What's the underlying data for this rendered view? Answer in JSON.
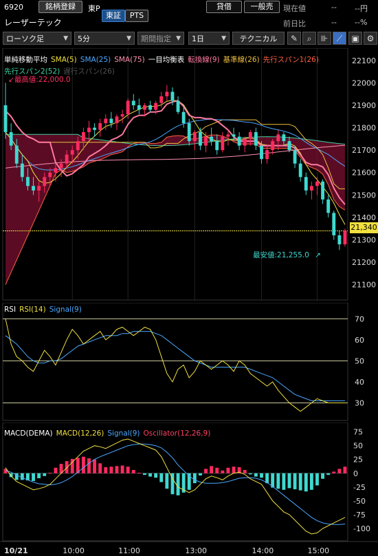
{
  "header": {
    "code": "6920",
    "brand_button": "銘柄登録",
    "exchange_short": "東P",
    "name": "レーザーテック",
    "market_tabs": [
      "東証",
      "PTS"
    ],
    "lending_button": "貸借",
    "general_button": "一般売",
    "current_label": "現在値",
    "current_value": "--",
    "current_unit": "--円",
    "change_label": "前日比",
    "change_value": "--",
    "change_pct": "--%"
  },
  "toolbar": {
    "candle_type": "ローソク足",
    "interval": "5分",
    "period": "期間指定",
    "range": "1日",
    "technical": "テクニカル",
    "icons": [
      "pencil-icon",
      "zoom-icon",
      "compare-icon",
      "chart-style-icon",
      "save-icon",
      "settings-icon"
    ]
  },
  "legends": {
    "main": [
      {
        "text": "単純移動平均",
        "color": "#ffffff"
      },
      {
        "text": "SMA(5)",
        "color": "#f0e040"
      },
      {
        "text": "SMA(25)",
        "color": "#4aa8ff"
      },
      {
        "text": "SMA(75)",
        "color": "#ff8fb0"
      },
      {
        "text": "一目均衡表",
        "color": "#ffffff"
      },
      {
        "text": "転換線(9)",
        "color": "#ff7aa0"
      },
      {
        "text": "基準線(26)",
        "color": "#f0c040"
      },
      {
        "text": "先行スパン1(26)",
        "color": "#ff6040"
      }
    ],
    "main2": [
      {
        "text": "先行スパン2(52)",
        "color": "#40d0a0"
      },
      {
        "text": "遅行スパン(26)",
        "color": "#a0a0a0"
      }
    ],
    "rsi": [
      {
        "text": "RSI",
        "color": "#ffffff"
      },
      {
        "text": "RSI(14)",
        "color": "#f0e040"
      },
      {
        "text": "Signal(9)",
        "color": "#4aa8ff"
      }
    ],
    "macd": [
      {
        "text": "MACD(DEMA)",
        "color": "#ffffff"
      },
      {
        "text": "MACD(12,26)",
        "color": "#f0e040"
      },
      {
        "text": "Signal(9)",
        "color": "#4aa8ff"
      },
      {
        "text": "Oscillator(12,26,9)",
        "color": "#ff4060"
      }
    ]
  },
  "annotations": {
    "high": "最高値:22,000.0",
    "low": "最安値:21,255.0",
    "current_price_tag": "21,340"
  },
  "chart_data": [
    {
      "type": "candlestick",
      "name": "price",
      "x_labels": [
        "10/21",
        "10:00",
        "11:00",
        "13:00",
        "14:00",
        "15:00"
      ],
      "ylim": [
        21050,
        22130
      ],
      "yticks": [
        21100,
        21200,
        21300,
        21400,
        21500,
        21600,
        21700,
        21800,
        21900,
        22000,
        22100
      ],
      "current_line": 21340,
      "ohlc": [
        [
          21900,
          22000,
          21750,
          21780
        ],
        [
          21780,
          21820,
          21700,
          21720
        ],
        [
          21720,
          21750,
          21620,
          21640
        ],
        [
          21640,
          21680,
          21560,
          21580
        ],
        [
          21580,
          21620,
          21520,
          21540
        ],
        [
          21540,
          21580,
          21500,
          21520
        ],
        [
          21520,
          21560,
          21470,
          21540
        ],
        [
          21540,
          21600,
          21510,
          21580
        ],
        [
          21580,
          21620,
          21540,
          21600
        ],
        [
          21600,
          21640,
          21560,
          21620
        ],
        [
          21620,
          21660,
          21580,
          21640
        ],
        [
          21640,
          21700,
          21620,
          21680
        ],
        [
          21680,
          21720,
          21640,
          21700
        ],
        [
          21700,
          21760,
          21660,
          21740
        ],
        [
          21740,
          21800,
          21700,
          21780
        ],
        [
          21780,
          21830,
          21740,
          21800
        ],
        [
          21800,
          21820,
          21760,
          21790
        ],
        [
          21790,
          21840,
          21760,
          21820
        ],
        [
          21820,
          21860,
          21790,
          21840
        ],
        [
          21840,
          21870,
          21800,
          21820
        ],
        [
          21820,
          21860,
          21790,
          21850
        ],
        [
          21850,
          21880,
          21820,
          21860
        ],
        [
          21860,
          21930,
          21840,
          21920
        ],
        [
          21920,
          21950,
          21880,
          21900
        ],
        [
          21900,
          21930,
          21860,
          21880
        ],
        [
          21880,
          21910,
          21850,
          21900
        ],
        [
          21900,
          21920,
          21870,
          21880
        ],
        [
          21880,
          21920,
          21860,
          21910
        ],
        [
          21910,
          21960,
          21890,
          21940
        ],
        [
          21940,
          21990,
          21920,
          21960
        ],
        [
          21960,
          21980,
          21900,
          21920
        ],
        [
          21920,
          21940,
          21860,
          21870
        ],
        [
          21870,
          21900,
          21800,
          21820
        ],
        [
          21820,
          21840,
          21720,
          21740
        ],
        [
          21740,
          21790,
          21700,
          21780
        ],
        [
          21780,
          21800,
          21700,
          21720
        ],
        [
          21720,
          21780,
          21690,
          21760
        ],
        [
          21760,
          21800,
          21720,
          21740
        ],
        [
          21740,
          21770,
          21680,
          21700
        ],
        [
          21700,
          21780,
          21690,
          21760
        ],
        [
          21760,
          21790,
          21720,
          21770
        ],
        [
          21770,
          21800,
          21740,
          21760
        ],
        [
          21760,
          21780,
          21700,
          21720
        ],
        [
          21720,
          21760,
          21690,
          21750
        ],
        [
          21750,
          21790,
          21720,
          21780
        ],
        [
          21780,
          21800,
          21700,
          21720
        ],
        [
          21720,
          21740,
          21640,
          21660
        ],
        [
          21660,
          21720,
          21640,
          21700
        ],
        [
          21700,
          21750,
          21680,
          21740
        ],
        [
          21740,
          21790,
          21700,
          21770
        ],
        [
          21770,
          21780,
          21720,
          21740
        ],
        [
          21740,
          21760,
          21690,
          21700
        ],
        [
          21700,
          21720,
          21620,
          21640
        ],
        [
          21640,
          21660,
          21560,
          21580
        ],
        [
          21580,
          21600,
          21500,
          21520
        ],
        [
          21520,
          21560,
          21480,
          21540
        ],
        [
          21540,
          21580,
          21500,
          21560
        ],
        [
          21560,
          21570,
          21460,
          21480
        ],
        [
          21480,
          21500,
          21400,
          21420
        ],
        [
          21420,
          21430,
          21300,
          21320
        ],
        [
          21320,
          21340,
          21255,
          21280
        ],
        [
          21280,
          21350,
          21270,
          21340
        ]
      ],
      "series": [
        {
          "name": "SMA(5)",
          "color": "#f0e040"
        },
        {
          "name": "SMA(25)",
          "color": "#4aa8ff"
        },
        {
          "name": "SMA(75)",
          "color": "#ff8fb0"
        },
        {
          "name": "転換線(9)",
          "color": "#ff7aa0"
        },
        {
          "name": "基準線(26)",
          "color": "#f0c040"
        },
        {
          "name": "先行スパン1(26)",
          "color": "#ff6040"
        },
        {
          "name": "先行スパン2(52)",
          "color": "#40d0a0"
        }
      ]
    },
    {
      "type": "line",
      "name": "RSI",
      "ylim": [
        22,
        75
      ],
      "yticks": [
        30,
        40,
        50,
        60,
        70
      ],
      "hlines": [
        70,
        50,
        30
      ],
      "series": [
        {
          "name": "RSI(14)",
          "color": "#f0e040",
          "values": [
            70,
            58,
            52,
            50,
            47,
            45,
            50,
            55,
            52,
            48,
            54,
            60,
            65,
            62,
            58,
            60,
            62,
            64,
            60,
            62,
            65,
            66,
            64,
            62,
            64,
            66,
            65,
            60,
            52,
            44,
            40,
            46,
            48,
            42,
            45,
            50,
            48,
            46,
            48,
            50,
            48,
            45,
            50,
            48,
            44,
            42,
            40,
            38,
            40,
            36,
            33,
            30,
            28,
            26,
            28,
            30,
            32,
            31,
            30,
            30,
            30,
            30
          ]
        },
        {
          "name": "Signal(9)",
          "color": "#4aa8ff",
          "values": [
            62,
            60,
            58,
            55,
            52,
            50,
            49,
            49,
            50,
            50,
            51,
            53,
            55,
            57,
            58,
            59,
            60,
            61,
            62,
            62,
            62,
            63,
            63,
            64,
            64,
            64,
            64,
            63,
            62,
            60,
            58,
            56,
            54,
            52,
            50,
            49,
            48,
            47,
            47,
            47,
            47,
            47,
            47,
            47,
            46,
            45,
            44,
            43,
            42,
            40,
            38,
            36,
            34,
            33,
            32,
            31,
            31,
            31,
            31,
            31,
            31,
            31
          ]
        }
      ]
    },
    {
      "type": "bar+line",
      "name": "MACD",
      "ylim": [
        -120,
        82
      ],
      "yticks": [
        75,
        50,
        25,
        0,
        -25,
        -50,
        -75,
        -100
      ],
      "series": [
        {
          "name": "MACD(12,26)",
          "color": "#f0e040",
          "values": [
            10,
            -5,
            -15,
            -20,
            -25,
            -30,
            -28,
            -25,
            -20,
            -10,
            0,
            10,
            20,
            30,
            40,
            45,
            50,
            48,
            45,
            50,
            55,
            60,
            62,
            58,
            54,
            50,
            46,
            42,
            30,
            10,
            -10,
            -25,
            -30,
            -35,
            -30,
            -20,
            -10,
            -5,
            -8,
            -12,
            -5,
            0,
            2,
            -2,
            -10,
            -15,
            -20,
            -35,
            -50,
            -60,
            -70,
            -75,
            -85,
            -95,
            -105,
            -110,
            -108,
            -100,
            -95,
            -90,
            -85,
            -80
          ]
        },
        {
          "name": "Signal(9)",
          "color": "#4aa8ff",
          "values": [
            5,
            2,
            -3,
            -8,
            -12,
            -16,
            -19,
            -20,
            -21,
            -20,
            -17,
            -12,
            -6,
            2,
            10,
            18,
            25,
            30,
            34,
            38,
            42,
            46,
            50,
            52,
            53,
            53,
            52,
            50,
            46,
            38,
            28,
            15,
            5,
            -5,
            -12,
            -16,
            -18,
            -18,
            -18,
            -17,
            -15,
            -12,
            -9,
            -8,
            -8,
            -9,
            -12,
            -17,
            -24,
            -32,
            -40,
            -48,
            -56,
            -64,
            -72,
            -80,
            -86,
            -90,
            -92,
            -93,
            -93,
            -92
          ]
        },
        {
          "name": "Oscillator(12,26,9)",
          "color_pos": "#ff2a5f",
          "color_neg": "#3fd9d0",
          "values": [
            8,
            -7,
            -12,
            -12,
            -13,
            -14,
            -9,
            -5,
            1,
            10,
            17,
            22,
            26,
            28,
            30,
            27,
            25,
            18,
            11,
            12,
            13,
            14,
            12,
            6,
            1,
            -3,
            -6,
            -8,
            -16,
            -28,
            -38,
            -40,
            -35,
            -30,
            -18,
            -4,
            8,
            13,
            10,
            5,
            10,
            12,
            11,
            6,
            -2,
            -6,
            -8,
            -18,
            -26,
            -28,
            -30,
            -27,
            -29,
            -31,
            -33,
            -30,
            -22,
            -10,
            -3,
            3,
            8,
            12
          ]
        }
      ]
    }
  ]
}
